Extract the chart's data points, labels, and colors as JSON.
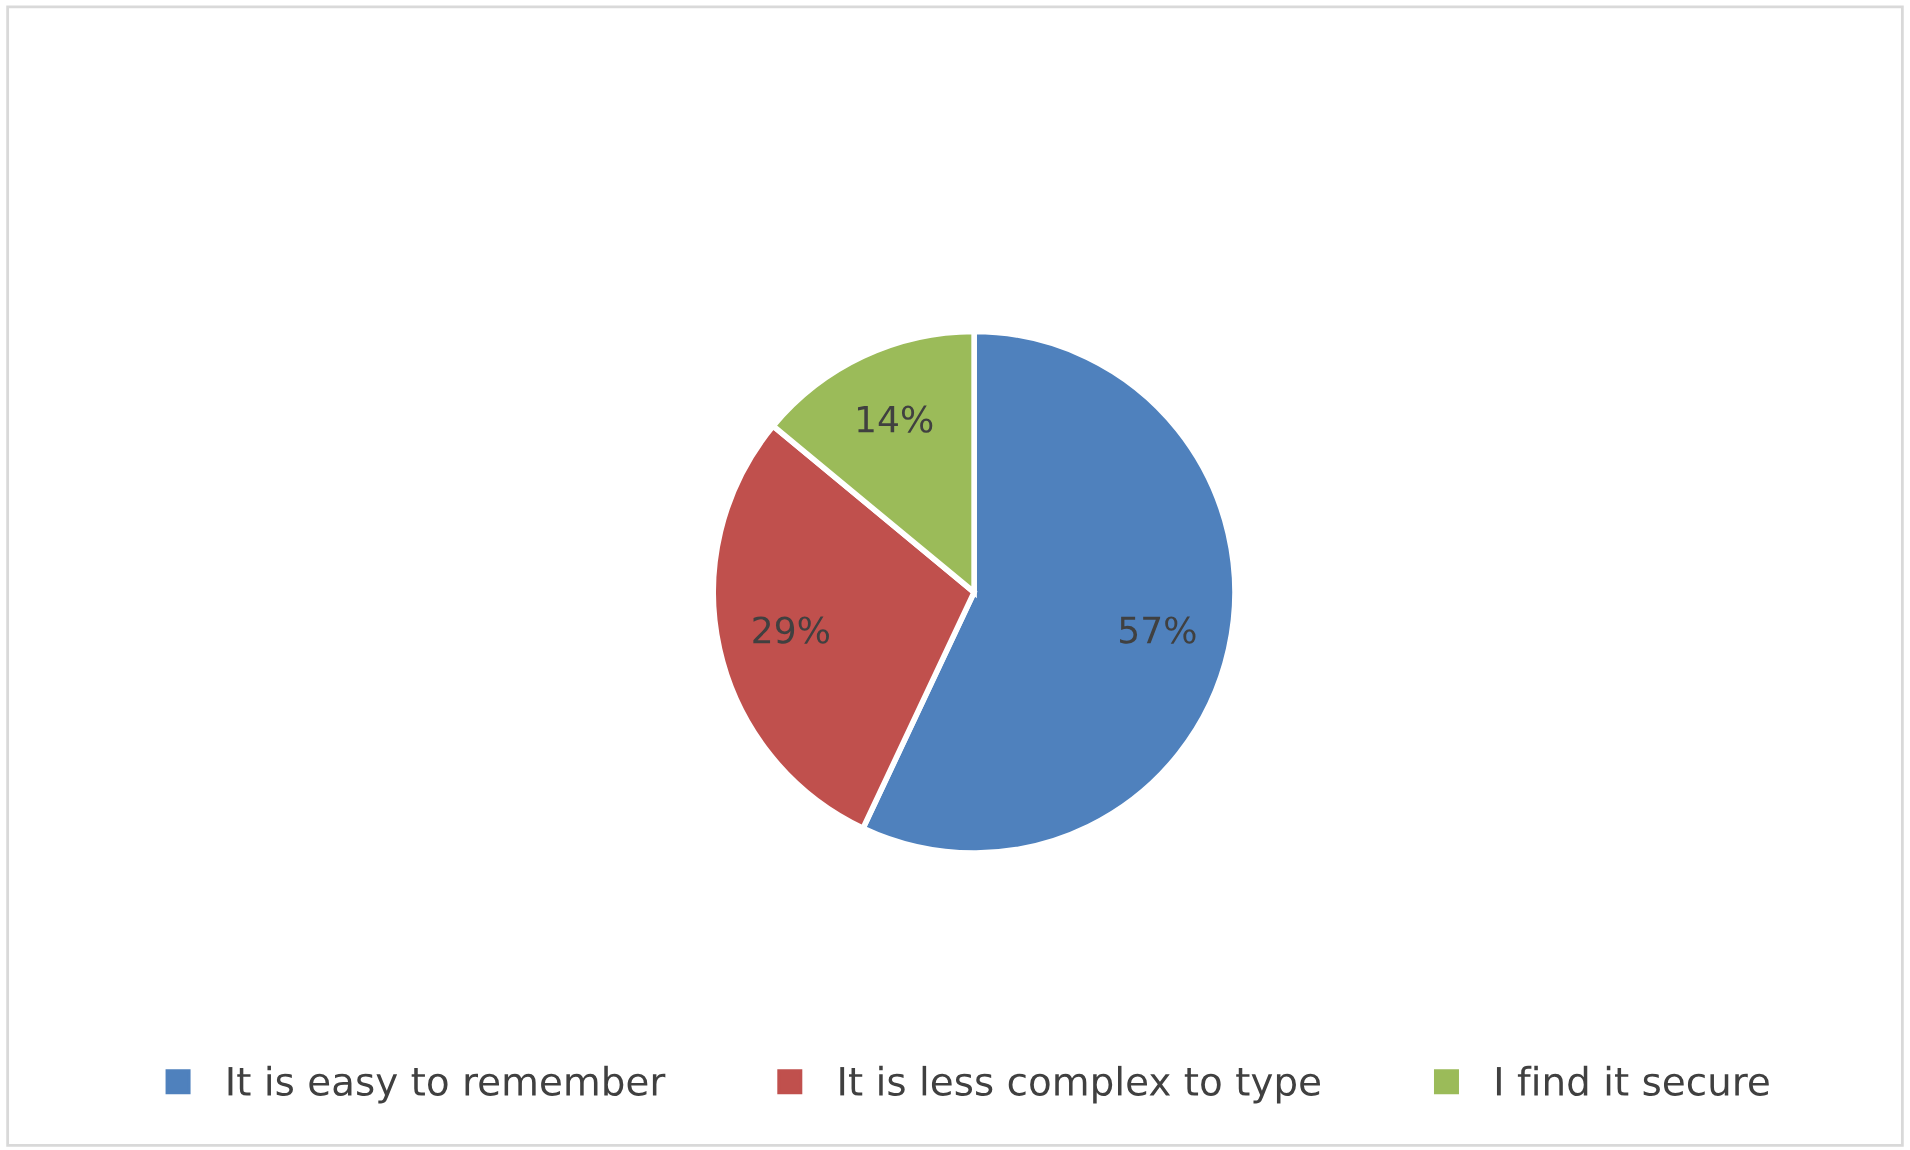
{
  "chart_data": {
    "type": "pie",
    "categories": [
      "It is easy to remember",
      "It is less complex to type",
      "I find it secure"
    ],
    "values": [
      57,
      29,
      14
    ],
    "colors": [
      "#4f81bd",
      "#c0504d",
      "#9bbb59"
    ],
    "value_labels": [
      "57%",
      "29%",
      "14%"
    ],
    "legend": "bottom"
  }
}
